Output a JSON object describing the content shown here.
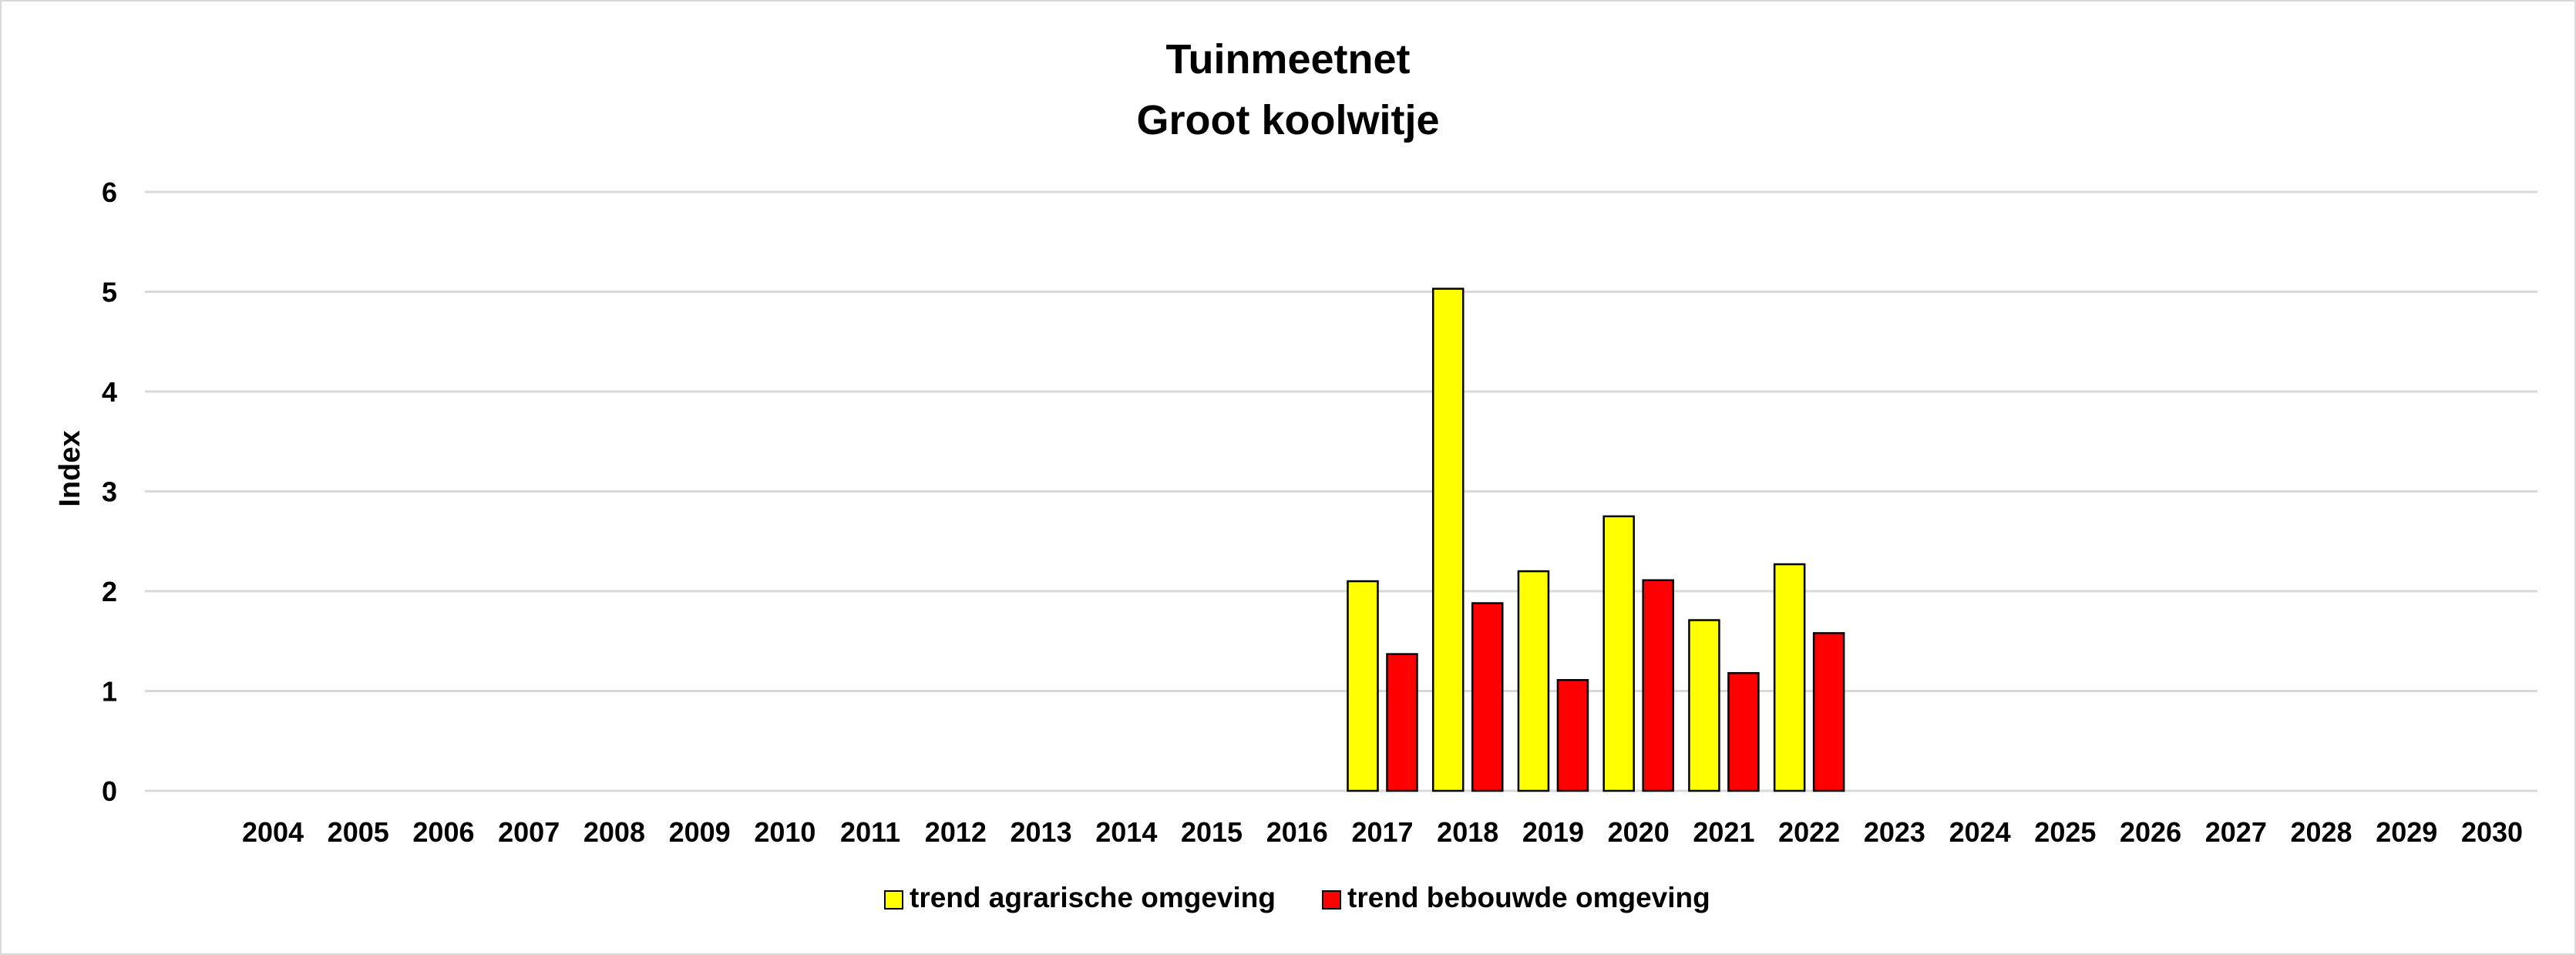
{
  "chart_data": {
    "type": "bar",
    "title": "Tuinmeetnet",
    "subtitle": "Groot koolwitje",
    "xlabel": "",
    "ylabel": "Index",
    "ylim": [
      0,
      6
    ],
    "yticks": [
      0,
      1,
      2,
      3,
      4,
      5,
      6
    ],
    "grid": true,
    "legend_position": "bottom",
    "categories": [
      "2004",
      "2005",
      "2006",
      "2007",
      "2008",
      "2009",
      "2010",
      "2011",
      "2012",
      "2013",
      "2014",
      "2015",
      "2016",
      "2017",
      "2018",
      "2019",
      "2020",
      "2021",
      "2022",
      "2023",
      "2024",
      "2025",
      "2026",
      "2027",
      "2028",
      "2029",
      "2030"
    ],
    "series": [
      {
        "name": "trend agrarische omgeving",
        "color": "#ffff00",
        "values": [
          null,
          null,
          null,
          null,
          null,
          null,
          null,
          null,
          null,
          null,
          null,
          null,
          null,
          2.1,
          5.03,
          2.2,
          2.75,
          1.71,
          2.27,
          null,
          null,
          null,
          null,
          null,
          null,
          null,
          null
        ]
      },
      {
        "name": "trend bebouwde omgeving",
        "color": "#ff0000",
        "values": [
          null,
          null,
          null,
          null,
          null,
          null,
          null,
          null,
          null,
          null,
          null,
          null,
          null,
          1.37,
          1.88,
          1.11,
          2.11,
          1.18,
          1.58,
          null,
          null,
          null,
          null,
          null,
          null,
          null,
          null
        ]
      }
    ]
  }
}
